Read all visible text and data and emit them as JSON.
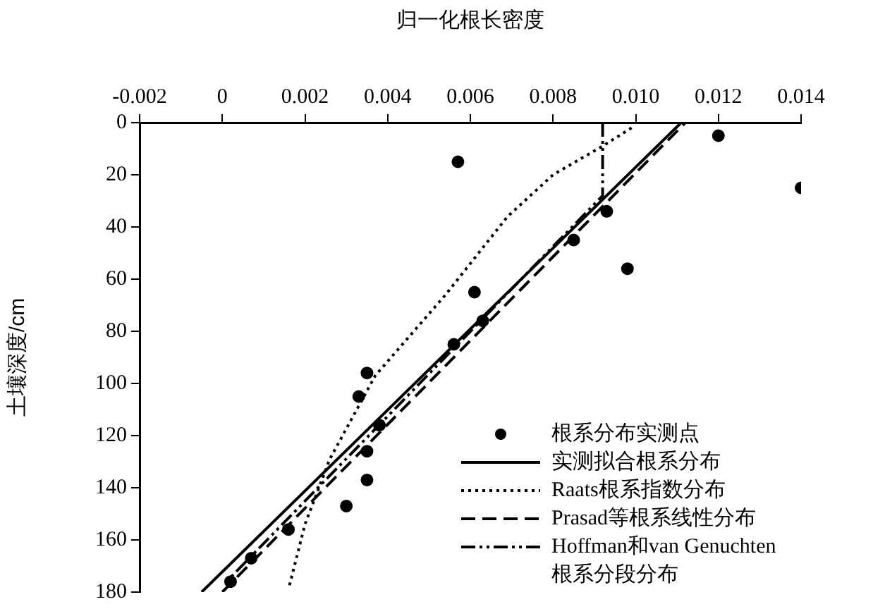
{
  "chart_data": {
    "type": "scatter",
    "xlabel": "归一化根长密度",
    "ylabel": "土壤深度/cm",
    "xlim": [
      -0.002,
      0.014
    ],
    "xticks": [
      -0.002,
      0,
      0.002,
      0.004,
      0.006,
      0.008,
      {
        "value": 0.01,
        "label": "0.010"
      },
      0.012,
      0.014
    ],
    "ylim": [
      180,
      0
    ],
    "yticks": [
      0,
      20,
      40,
      60,
      80,
      100,
      120,
      140,
      160,
      180
    ],
    "grid": false,
    "legend": "bottom right",
    "series": [
      {
        "name": "根系分布实测点",
        "type": "scatter",
        "marker": "circle",
        "color": "#000000",
        "x": [
          0.0057,
          0.012,
          0.014,
          0.0093,
          0.0098,
          0.0085,
          0.0061,
          0.0063,
          0.0056,
          0.0035,
          0.0033,
          0.0038,
          0.0035,
          0.0035,
          0.003,
          0.0016,
          0.0007,
          0.0002
        ],
        "values": [
          15,
          5,
          25,
          34,
          56,
          45,
          65,
          76,
          85,
          96,
          105,
          116,
          126,
          137,
          147,
          156,
          167,
          176
        ]
      },
      {
        "name": "实测拟合根系分布",
        "type": "line",
        "marker": "none",
        "line_style": "solid",
        "color": "#000000",
        "x": [
          -0.0005,
          0.0111
        ],
        "values": [
          180,
          0
        ]
      },
      {
        "name": "Raats根系指数分布",
        "type": "line",
        "marker": "none",
        "line_style": "dotted",
        "color": "#000000",
        "x": [
          0.0099,
          0.0092,
          0.008,
          0.0069,
          0.0054,
          0.0037,
          0.0026,
          0.002,
          0.0016
        ],
        "values": [
          2,
          9,
          20,
          36,
          66,
          97,
          129,
          154,
          179
        ]
      },
      {
        "name": "Prasad等根系线性分布",
        "type": "line",
        "marker": "none",
        "line_style": "dashed",
        "color": "#000000",
        "x": [
          0.0,
          0.0112
        ],
        "values": [
          180,
          0
        ]
      },
      {
        "name": "Hoffman和van Genuchten根系分段分布",
        "type": "line",
        "marker": "none",
        "line_style": "dashdot",
        "color": "#000000",
        "x": [
          0.0092,
          0.0092,
          0.0001
        ],
        "values": [
          0,
          28,
          176
        ]
      }
    ]
  }
}
